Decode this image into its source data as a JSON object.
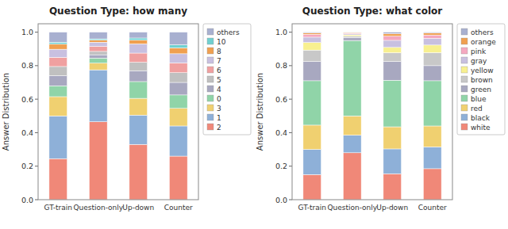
{
  "chart_data": [
    {
      "type": "bar",
      "stacked": true,
      "title": "Question Type: how many",
      "y_label": "Answer Distribution",
      "categories": [
        "GT-train",
        "Question-only",
        "Up-down",
        "Counter"
      ],
      "ylim": [
        0,
        1.05
      ],
      "yticks": [
        {
          "value": 0,
          "label": "0.0"
        },
        0.2,
        0.4,
        0.6,
        0.8,
        {
          "value": 1,
          "label": "1.0"
        }
      ],
      "grid": false,
      "legend": "right",
      "series": [
        {
          "name": "2",
          "color": "#F08878",
          "values": [
            0.245,
            0.465,
            0.33,
            0.26
          ]
        },
        {
          "name": "1",
          "color": "#8EB0D8",
          "values": [
            0.255,
            0.31,
            0.175,
            0.18
          ]
        },
        {
          "name": "3",
          "color": "#F0D070",
          "values": [
            0.115,
            0.04,
            0.1,
            0.105
          ]
        },
        {
          "name": "0",
          "color": "#90D4A8",
          "values": [
            0.065,
            0.03,
            0.1,
            0.08
          ]
        },
        {
          "name": "4",
          "color": "#A8A8C0",
          "values": [
            0.06,
            0.02,
            0.065,
            0.075
          ]
        },
        {
          "name": "5",
          "color": "#C0C0C0",
          "values": [
            0.055,
            0.02,
            0.05,
            0.058
          ]
        },
        {
          "name": "6",
          "color": "#F0A0A0",
          "values": [
            0.055,
            0.03,
            0.055,
            0.058
          ]
        },
        {
          "name": "7",
          "color": "#C8C0E0",
          "values": [
            0.048,
            0.025,
            0.055,
            0.055
          ]
        },
        {
          "name": "8",
          "color": "#F0A050",
          "values": [
            0.03,
            0.012,
            0.022,
            0.035
          ]
        },
        {
          "name": "10",
          "color": "#70D0D0",
          "values": [
            0.012,
            0.008,
            0.013,
            0.019
          ]
        },
        {
          "name": "others",
          "color": "#A8B0D0",
          "values": [
            0.06,
            0.04,
            0.035,
            0.075
          ]
        }
      ]
    },
    {
      "type": "bar",
      "stacked": true,
      "title": "Question Type: what color",
      "y_label": "Answer Distribution",
      "categories": [
        "GT-train",
        "Question-only",
        "Up-down",
        "Counter"
      ],
      "ylim": [
        0,
        1.05
      ],
      "yticks": [
        {
          "value": 0,
          "label": "0.0"
        },
        0.2,
        0.4,
        0.6,
        0.8,
        {
          "value": 1,
          "label": "1.0"
        }
      ],
      "grid": false,
      "legend": "right",
      "series": [
        {
          "name": "white",
          "color": "#F08878",
          "values": [
            0.15,
            0.28,
            0.155,
            0.185
          ]
        },
        {
          "name": "black",
          "color": "#8EB0D8",
          "values": [
            0.15,
            0.105,
            0.148,
            0.13
          ]
        },
        {
          "name": "red",
          "color": "#F0D070",
          "values": [
            0.145,
            0.115,
            0.132,
            0.125
          ]
        },
        {
          "name": "blue",
          "color": "#90D4A8",
          "values": [
            0.265,
            0.45,
            0.278,
            0.27
          ]
        },
        {
          "name": "green",
          "color": "#A8A8C0",
          "values": [
            0.115,
            0.018,
            0.112,
            0.09
          ]
        },
        {
          "name": "brown",
          "color": "#C8C8C8",
          "values": [
            0.068,
            0.008,
            0.052,
            0.078
          ]
        },
        {
          "name": "yellow",
          "color": "#F8F090",
          "values": [
            0.045,
            0.008,
            0.032,
            0.045
          ]
        },
        {
          "name": "gray",
          "color": "#C8C0E0",
          "values": [
            0.032,
            0.006,
            0.042,
            0.04
          ]
        },
        {
          "name": "pink",
          "color": "#F4A8C0",
          "values": [
            0.017,
            0.005,
            0.025,
            0.02
          ]
        },
        {
          "name": "orange",
          "color": "#F0A050",
          "values": [
            0.008,
            0.003,
            0.015,
            0.012
          ]
        },
        {
          "name": "others",
          "color": "#A8B0D0",
          "values": [
            0.005,
            0.002,
            0.009,
            0.005
          ]
        }
      ]
    }
  ]
}
